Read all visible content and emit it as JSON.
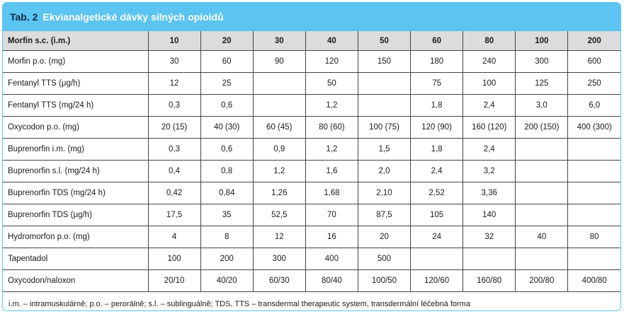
{
  "title": {
    "number": "Tab. 2",
    "text": "Ekvianalgetické dávky silných opioidů"
  },
  "table": {
    "header": [
      "Morfin s.c. (i.m.)",
      "10",
      "20",
      "30",
      "40",
      "50",
      "60",
      "80",
      "100",
      "200"
    ],
    "rows": [
      [
        "Morfin p.o. (mg)",
        "30",
        "60",
        "90",
        "120",
        "150",
        "180",
        "240",
        "300",
        "600"
      ],
      [
        "Fentanyl TTS (μg/h)",
        "12",
        "25",
        "",
        "50",
        "",
        "75",
        "100",
        "125",
        "250"
      ],
      [
        "Fentanyl TTS (mg/24 h)",
        "0,3",
        "0,6",
        "",
        "1,2",
        "",
        "1,8",
        "2,4",
        "3,0",
        "6,0"
      ],
      [
        "Oxycodon p.o. (mg)",
        "20 (15)",
        "40 (30)",
        "60 (45)",
        "80 (60)",
        "100 (75)",
        "120 (90)",
        "160 (120)",
        "200 (150)",
        "400 (300)"
      ],
      [
        "Buprenorfin i.m. (mg)",
        "0,3",
        "0,6",
        "0,9",
        "1,2",
        "1,5",
        "1,8",
        "2,4",
        "",
        ""
      ],
      [
        "Buprenorfin s.l. (mg/24 h)",
        "0,4",
        "0,8",
        "1,2",
        "1,6",
        "2,0",
        "2,4",
        "3,2",
        "",
        ""
      ],
      [
        "Buprenorfin TDS (mg/24 h)",
        "0,42",
        "0,84",
        "1,26",
        "1,68",
        "2,10",
        "2,52",
        "3,36",
        "",
        ""
      ],
      [
        "Buprenorfin TDS (μg/h)",
        "17,5",
        "35",
        "52,5",
        "70",
        "87,5",
        "105",
        "140",
        "",
        ""
      ],
      [
        "Hydromorfon p.o. (mg)",
        "4",
        "8",
        "12",
        "16",
        "20",
        "24",
        "32",
        "40",
        "80"
      ],
      [
        "Tapentadol",
        "100",
        "200",
        "300",
        "400",
        "500",
        "",
        "",
        "",
        ""
      ],
      [
        "Oxycodon/naloxon",
        "20/10",
        "40/20",
        "60/30",
        "80/40",
        "100/50",
        "120/60",
        "160/80",
        "200/80",
        "400/80"
      ]
    ]
  },
  "footnote": "i.m. – intramuskulárně; p.o. – perorálně; s.l. – sublinguálně; TDS, TTS – transdermal therapeutic system, transdermální léčebná forma"
}
